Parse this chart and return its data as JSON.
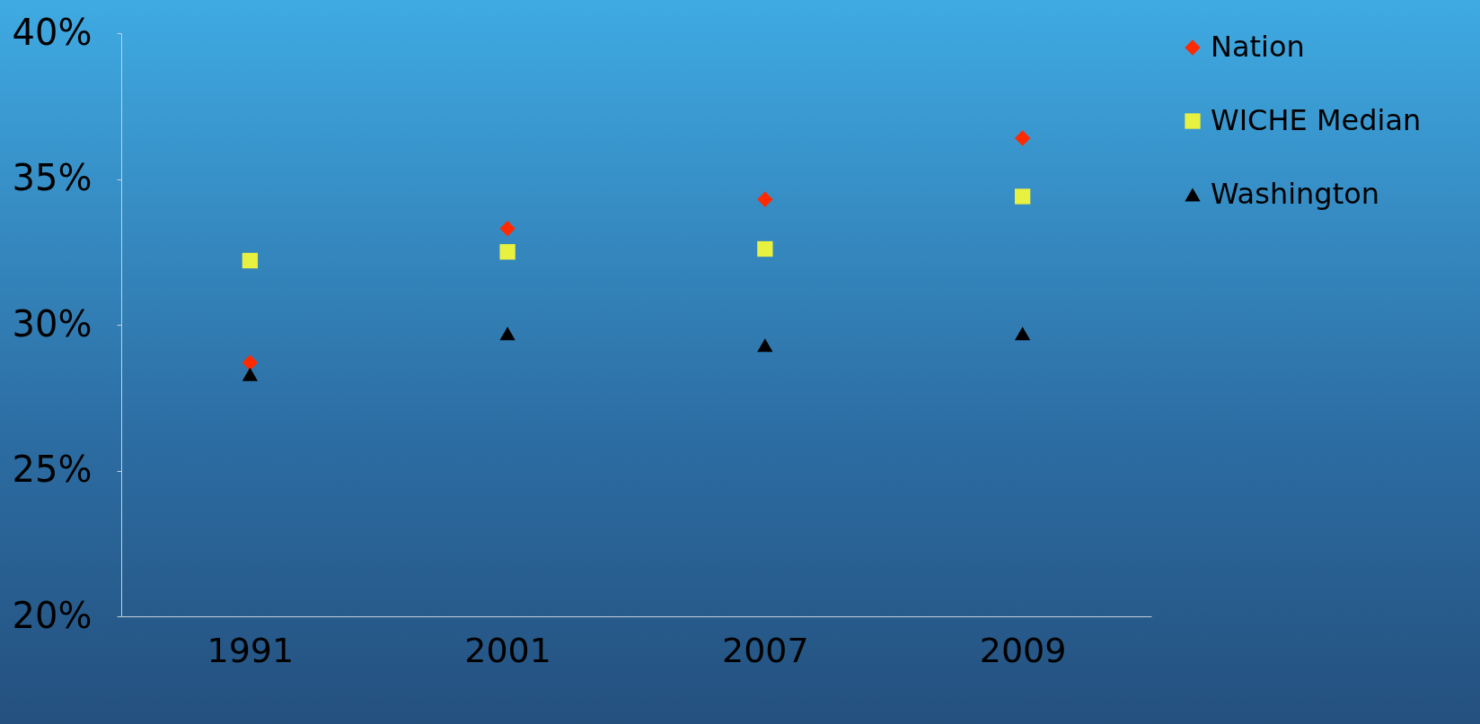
{
  "chart_data": {
    "type": "scatter",
    "categories": [
      "1991",
      "2001",
      "2007",
      "2009"
    ],
    "series": [
      {
        "name": "Nation",
        "color": "#ff2a00",
        "marker": "diamond",
        "values": [
          28.7,
          33.3,
          34.3,
          36.4
        ]
      },
      {
        "name": "WICHE Median",
        "color": "#e8f040",
        "marker": "square",
        "values": [
          32.2,
          32.5,
          32.6,
          34.4
        ]
      },
      {
        "name": "Washington",
        "color": "#000000",
        "marker": "triangle",
        "values": [
          28.3,
          29.7,
          29.3,
          29.7
        ]
      }
    ],
    "ylim": [
      20,
      40
    ],
    "yticks": [
      {
        "value": 20,
        "label": "20%"
      },
      {
        "value": 25,
        "label": "25%"
      },
      {
        "value": 30,
        "label": "30%"
      },
      {
        "value": 35,
        "label": "35%"
      },
      {
        "value": 40,
        "label": "40%"
      }
    ],
    "grid": false,
    "legend": "top right"
  }
}
